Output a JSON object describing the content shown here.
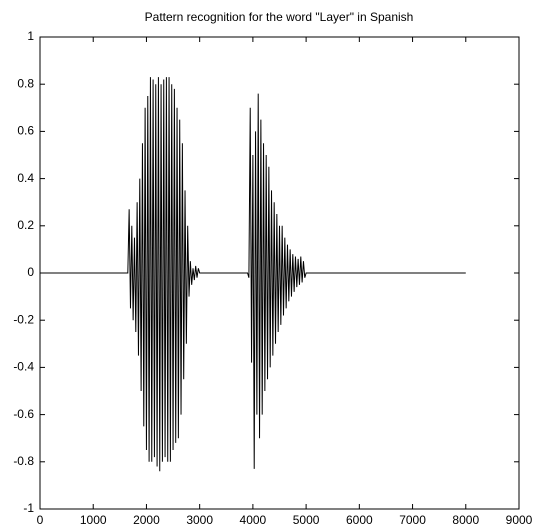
{
  "chart_data": {
    "type": "line",
    "title": "Pattern recognition for the word \"Layer\" in Spanish",
    "x": [
      0,
      1650,
      1675,
      1700,
      1725,
      1750,
      1775,
      1800,
      1825,
      1850,
      1875,
      1900,
      1925,
      1950,
      1975,
      2000,
      2025,
      2050,
      2075,
      2100,
      2125,
      2150,
      2175,
      2200,
      2225,
      2250,
      2275,
      2300,
      2325,
      2350,
      2375,
      2400,
      2425,
      2450,
      2475,
      2500,
      2525,
      2550,
      2575,
      2600,
      2625,
      2650,
      2675,
      2700,
      2725,
      2750,
      2775,
      2800,
      2825,
      2850,
      2875,
      2900,
      2925,
      2950,
      2975,
      3000,
      3900,
      3925,
      3950,
      3975,
      4000,
      4025,
      4050,
      4075,
      4100,
      4125,
      4150,
      4175,
      4200,
      4225,
      4250,
      4275,
      4300,
      4325,
      4350,
      4375,
      4400,
      4425,
      4450,
      4475,
      4500,
      4525,
      4550,
      4575,
      4600,
      4625,
      4650,
      4675,
      4700,
      4725,
      4750,
      4775,
      4800,
      4825,
      4850,
      4875,
      4900,
      4925,
      4950,
      4975,
      5000,
      8000
    ],
    "series": [
      {
        "color": "#000000",
        "values": [
          0,
          0,
          0.27,
          -0.15,
          0.2,
          -0.2,
          0.15,
          -0.25,
          0.3,
          -0.35,
          0.4,
          -0.5,
          0.55,
          -0.65,
          0.7,
          -0.75,
          0.75,
          -0.8,
          0.83,
          -0.8,
          0.82,
          -0.78,
          0.8,
          -0.82,
          0.83,
          -0.84,
          0.8,
          -0.8,
          0.82,
          -0.78,
          0.83,
          -0.8,
          0.83,
          -0.8,
          0.8,
          -0.75,
          0.78,
          -0.72,
          0.7,
          -0.7,
          0.65,
          -0.6,
          0.55,
          -0.45,
          0.35,
          -0.3,
          0.2,
          -0.1,
          0.05,
          -0.05,
          0.02,
          -0.03,
          0.03,
          -0.02,
          0.02,
          0,
          0,
          -0.02,
          0.7,
          -0.38,
          0.5,
          -0.83,
          0.6,
          -0.6,
          0.76,
          -0.7,
          0.65,
          -0.6,
          0.55,
          -0.5,
          0.5,
          -0.45,
          0.45,
          -0.4,
          0.35,
          -0.35,
          0.3,
          -0.3,
          0.25,
          -0.25,
          0.2,
          -0.22,
          0.2,
          -0.18,
          0.15,
          -0.15,
          0.12,
          -0.12,
          0.1,
          -0.1,
          0.08,
          -0.08,
          0.07,
          -0.06,
          0.06,
          -0.05,
          0.07,
          -0.04,
          0.05,
          -0.02,
          0,
          0
        ]
      }
    ],
    "xlim": [
      0,
      9000
    ],
    "xticks": [
      0,
      1000,
      2000,
      3000,
      4000,
      5000,
      6000,
      7000,
      8000,
      9000
    ],
    "ylim": [
      -1,
      1
    ],
    "yticks": [
      -1,
      -0.8,
      -0.6,
      -0.4,
      -0.2,
      0,
      0.2,
      0.4,
      0.6,
      0.8,
      1
    ]
  }
}
